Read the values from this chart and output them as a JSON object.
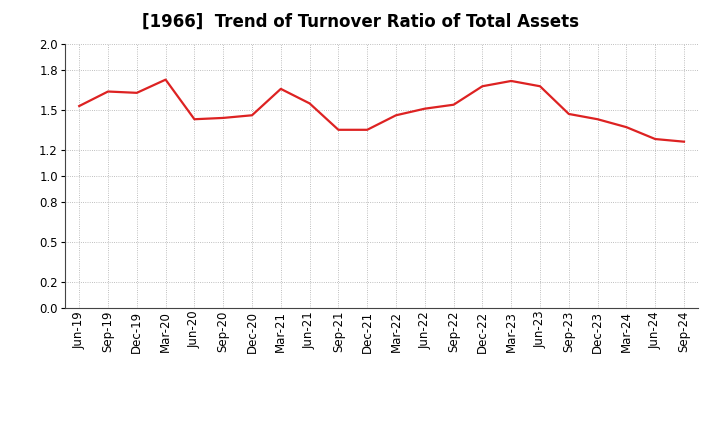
{
  "title": "[1966]  Trend of Turnover Ratio of Total Assets",
  "x_labels": [
    "Jun-19",
    "Sep-19",
    "Dec-19",
    "Mar-20",
    "Jun-20",
    "Sep-20",
    "Dec-20",
    "Mar-21",
    "Jun-21",
    "Sep-21",
    "Dec-21",
    "Mar-22",
    "Jun-22",
    "Sep-22",
    "Dec-22",
    "Mar-23",
    "Jun-23",
    "Sep-23",
    "Dec-23",
    "Mar-24",
    "Jun-24",
    "Sep-24"
  ],
  "values": [
    1.53,
    1.64,
    1.63,
    1.73,
    1.43,
    1.44,
    1.46,
    1.66,
    1.55,
    1.35,
    1.35,
    1.46,
    1.51,
    1.54,
    1.68,
    1.72,
    1.68,
    1.47,
    1.43,
    1.37,
    1.28,
    1.26
  ],
  "line_color": "#dd2222",
  "background_color": "#ffffff",
  "plot_bg_color": "#ffffff",
  "grid_color": "#aaaaaa",
  "ylim": [
    0.0,
    2.0
  ],
  "yticks": [
    0.0,
    0.2,
    0.5,
    0.8,
    1.0,
    1.2,
    1.5,
    1.8,
    2.0
  ],
  "title_fontsize": 12,
  "tick_fontsize": 8.5,
  "line_width": 1.6
}
